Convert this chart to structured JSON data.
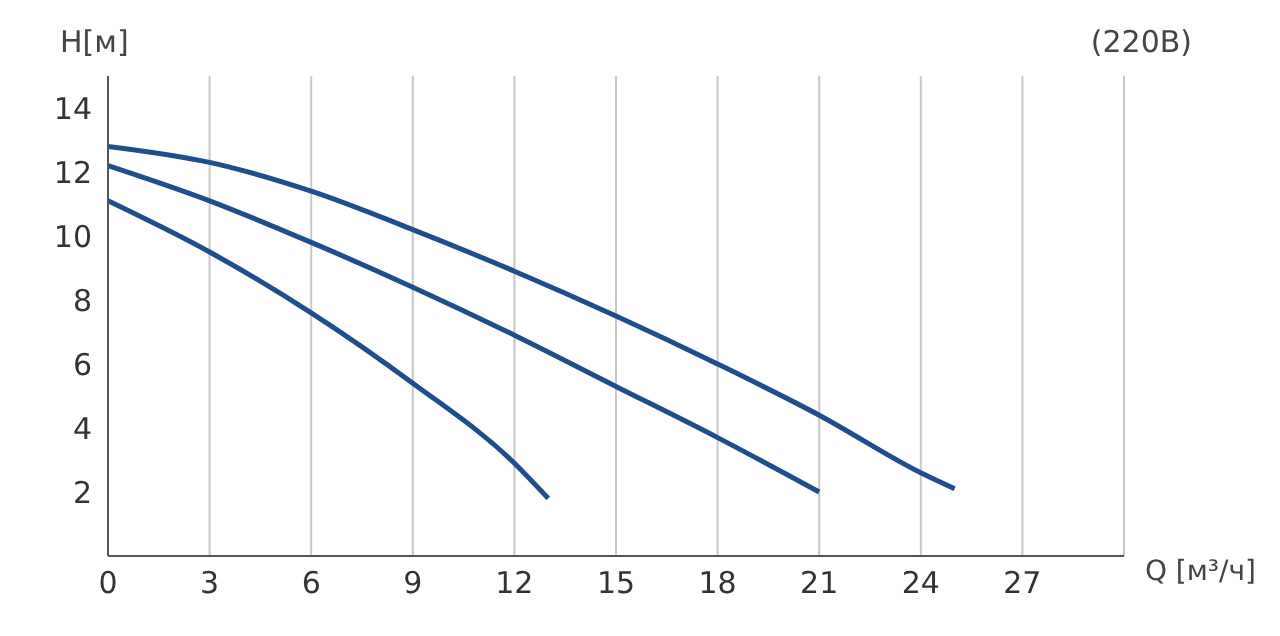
{
  "chart_data": {
    "type": "line",
    "title": "(220В)",
    "xlabel": "Q [м³/ч]",
    "ylabel": "H[м]",
    "xlim": [
      0,
      30
    ],
    "xticks": [
      0,
      3,
      6,
      9,
      12,
      15,
      18,
      21,
      24,
      27
    ],
    "ylim": [
      0,
      15
    ],
    "yticks": [
      2,
      4,
      6,
      8,
      10,
      12,
      14
    ],
    "grid": "x",
    "marker": "none",
    "line_style": "solid",
    "series": [
      {
        "color": "#1f4e8c",
        "x": [
          0,
          3,
          6,
          9,
          12,
          15,
          18,
          21,
          24,
          25
        ],
        "values": [
          12.8,
          12.3,
          11.4,
          10.2,
          8.9,
          7.5,
          6.0,
          4.4,
          2.6,
          2.1
        ]
      },
      {
        "color": "#1f4e8c",
        "x": [
          0,
          3,
          6,
          9,
          12,
          15,
          18,
          21
        ],
        "values": [
          12.2,
          11.1,
          9.8,
          8.4,
          6.9,
          5.3,
          3.7,
          2.0
        ]
      },
      {
        "color": "#1f4e8c",
        "x": [
          0,
          3,
          6,
          9,
          12,
          13
        ],
        "values": [
          11.1,
          9.5,
          7.6,
          5.4,
          2.9,
          1.8
        ]
      }
    ]
  }
}
